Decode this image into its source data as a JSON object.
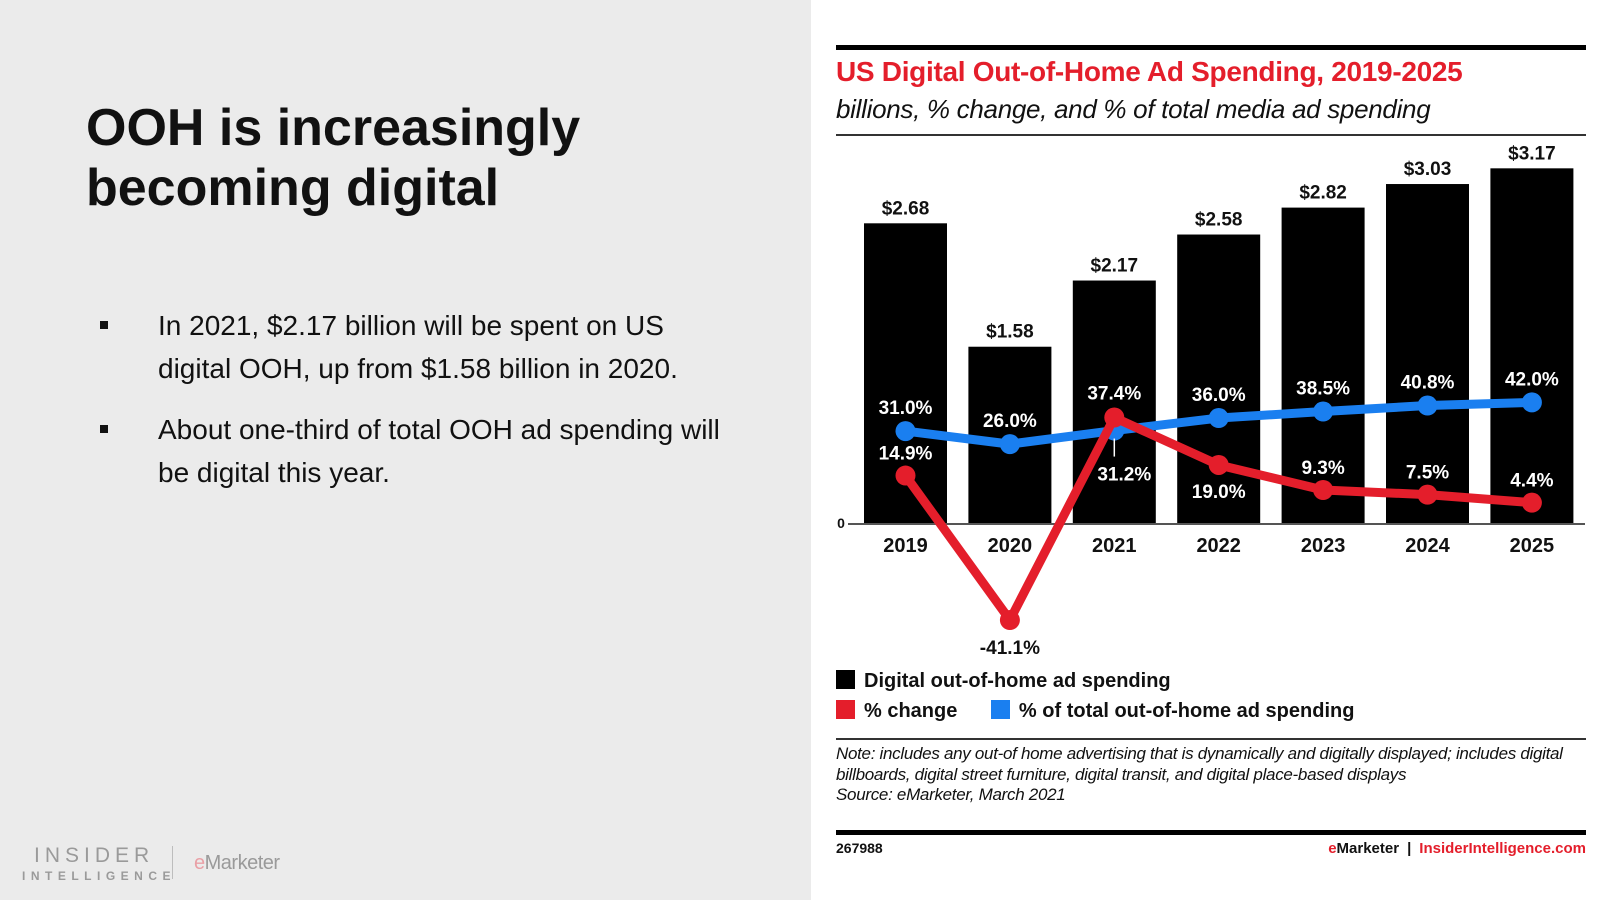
{
  "slide": {
    "title_line1": "OOH is increasingly",
    "title_line2": "becoming digital",
    "bullets": [
      "In 2021, $2.17 billion will be spent on US digital OOH, up from $1.58 billion in 2020.",
      "About one-third of total OOH ad spending will be digital this year."
    ],
    "logo": {
      "insider": "INSIDER",
      "intelligence": "INTELLIGENCE",
      "emarketer_e": "e",
      "emarketer_rest": "Marketer"
    }
  },
  "colors": {
    "bar": "#000000",
    "change_line": "#e41e2b",
    "share_line": "#1a7ff0",
    "title_red": "#e41e2b"
  },
  "chart_data": {
    "type": "bar",
    "title": "US Digital Out-of-Home Ad Spending, 2019-2025",
    "subtitle": "billions, % change, and % of total media ad spending",
    "categories": [
      "2019",
      "2020",
      "2021",
      "2022",
      "2023",
      "2024",
      "2025"
    ],
    "y_zero_label": "0",
    "grid": false,
    "legend_position": "bottom-left",
    "series": [
      {
        "name": "Digital out-of-home ad spending",
        "kind": "bar",
        "unit": "billions USD",
        "values": [
          2.68,
          1.58,
          2.17,
          2.58,
          2.82,
          3.03,
          3.17
        ],
        "labels": [
          "$2.68",
          "$1.58",
          "$2.17",
          "$2.58",
          "$2.82",
          "$3.03",
          "$3.17"
        ]
      },
      {
        "name": "% change",
        "kind": "line",
        "unit": "%",
        "values": [
          14.9,
          -41.1,
          37.4,
          19.0,
          9.3,
          7.5,
          4.4
        ],
        "labels": [
          "14.9%",
          "-41.1%",
          "37.4%",
          "19.0%",
          "9.3%",
          "7.5%",
          "4.4%"
        ]
      },
      {
        "name": "% of total out-of-home ad spending",
        "kind": "line",
        "unit": "%",
        "values": [
          31.0,
          26.0,
          31.2,
          36.0,
          38.5,
          40.8,
          42.0
        ],
        "labels": [
          "31.0%",
          "26.0%",
          "31.2%",
          "36.0%",
          "38.5%",
          "40.8%",
          "42.0%"
        ]
      }
    ],
    "legend": [
      "Digital out-of-home ad spending",
      "% change",
      "% of total out-of-home ad spending"
    ],
    "note": "Note: includes any out-of home advertising that is dynamically and digitally displayed; includes digital billboards, digital street furniture, digital transit, and digital place-based displays",
    "source": "Source: eMarketer, March 2021",
    "chart_id": "267988",
    "footer_brand": {
      "e": "e",
      "marketer": "Marketer",
      "sep": "|",
      "site": "InsiderIntelligence.com"
    }
  }
}
